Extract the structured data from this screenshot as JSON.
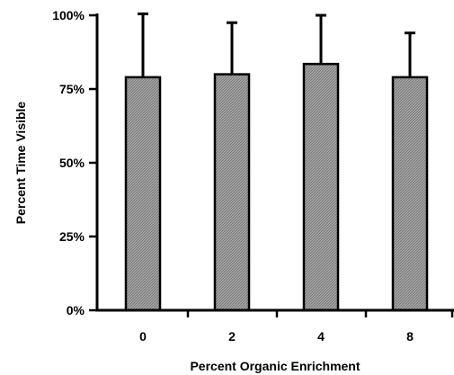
{
  "chart_data": {
    "type": "bar",
    "categories": [
      "0",
      "2",
      "4",
      "8"
    ],
    "values": [
      79,
      80,
      83.5,
      79
    ],
    "error_upper": [
      100.5,
      97.5,
      100,
      94
    ],
    "xlabel": "Percent Organic Enrichment",
    "ylabel": "Percent Time Visible",
    "ylim": [
      0,
      100
    ],
    "yticks": [
      "0%",
      "25%",
      "50%",
      "75%",
      "100%"
    ],
    "ytick_values": [
      0,
      25,
      50,
      75,
      100
    ],
    "grid": false,
    "colors": {
      "bar_fill": "#9a9a9a",
      "bar_stroke": "#000000",
      "axis": "#000000"
    }
  }
}
